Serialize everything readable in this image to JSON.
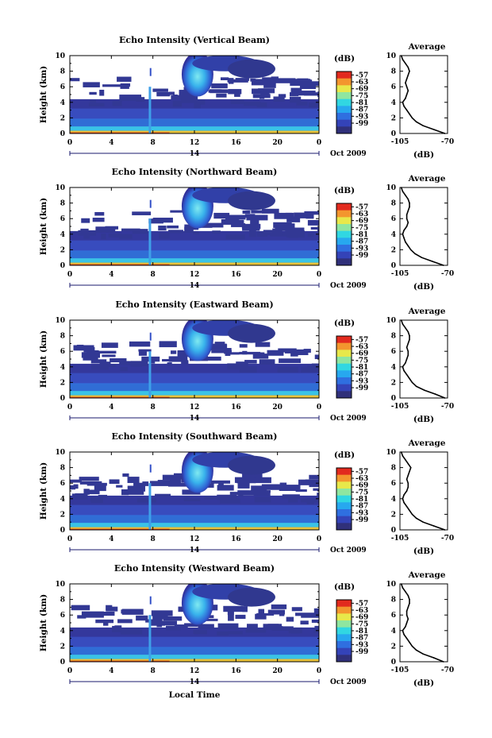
{
  "figure": {
    "xlabel": "Local Time",
    "date_label": "Oct 2009",
    "day_label": "14"
  },
  "chart_data": [
    {
      "type": "heatmap",
      "title": "Echo Intensity (Vertical Beam)",
      "ylabel": "Height (km)",
      "x_ticks": [
        "0",
        "4",
        "8",
        "12",
        "16",
        "20",
        "0"
      ],
      "y_ticks": [
        "0",
        "2",
        "4",
        "6",
        "8",
        "10"
      ],
      "xlim": [
        0,
        24
      ],
      "ylim": [
        0,
        10
      ],
      "colorbar": {
        "label": "(dB)",
        "ticks": [
          "-57",
          "-63",
          "-69",
          "-75",
          "-81",
          "-87",
          "-93",
          "-99"
        ]
      },
      "profile": {
        "title": "Average",
        "xlabel": "(dB)",
        "x_ticks": [
          "-105",
          "-70"
        ],
        "xlim": [
          -105,
          -70
        ],
        "y_ticks": [
          "0",
          "2",
          "4",
          "6",
          "8",
          "10"
        ],
        "heights": [
          0,
          0.5,
          1,
          1.5,
          2,
          2.5,
          3,
          3.5,
          4,
          4.5,
          5,
          5.5,
          6,
          6.5,
          7,
          7.5,
          8,
          8.5,
          9,
          9.5,
          10
        ],
        "values": [
          -72,
          -80,
          -88,
          -93,
          -96,
          -98,
          -100,
          -102,
          -103,
          -101,
          -100,
          -99,
          -100,
          -101,
          -100,
          -99,
          -98,
          -99,
          -101,
          -103,
          -104
        ]
      }
    },
    {
      "type": "heatmap",
      "title": "Echo Intensity (Northward Beam)",
      "ylabel": "Height (km)",
      "x_ticks": [
        "0",
        "4",
        "8",
        "12",
        "16",
        "20",
        "0"
      ],
      "y_ticks": [
        "0",
        "2",
        "4",
        "6",
        "8",
        "10"
      ],
      "xlim": [
        0,
        24
      ],
      "ylim": [
        0,
        10
      ],
      "colorbar": {
        "label": "(dB)",
        "ticks": [
          "-57",
          "-63",
          "-69",
          "-75",
          "-81",
          "-87",
          "-93",
          "-99"
        ]
      },
      "profile": {
        "title": "Average",
        "xlabel": "(dB)",
        "x_ticks": [
          "-105",
          "-70"
        ],
        "xlim": [
          -105,
          -70
        ],
        "y_ticks": [
          "0",
          "2",
          "4",
          "6",
          "8",
          "10"
        ],
        "heights": [
          0,
          0.5,
          1,
          1.5,
          2,
          2.5,
          3,
          3.5,
          4,
          4.5,
          5,
          5.5,
          6,
          6.5,
          7,
          7.5,
          8,
          8.5,
          9,
          9.5,
          10
        ],
        "values": [
          -73,
          -81,
          -89,
          -94,
          -97,
          -99,
          -101,
          -102,
          -103,
          -102,
          -100,
          -99,
          -100,
          -100,
          -99,
          -98,
          -98,
          -99,
          -101,
          -103,
          -104
        ]
      }
    },
    {
      "type": "heatmap",
      "title": "Echo Intensity (Eastward Beam)",
      "ylabel": "Height (km)",
      "x_ticks": [
        "0",
        "4",
        "8",
        "12",
        "16",
        "20",
        "0"
      ],
      "y_ticks": [
        "0",
        "2",
        "4",
        "6",
        "8",
        "10"
      ],
      "xlim": [
        0,
        24
      ],
      "ylim": [
        0,
        10
      ],
      "colorbar": {
        "label": "(dB)",
        "ticks": [
          "-57",
          "-63",
          "-69",
          "-75",
          "-81",
          "-87",
          "-93",
          "-99"
        ]
      },
      "profile": {
        "title": "Average",
        "xlabel": "(dB)",
        "x_ticks": [
          "-105",
          "-70"
        ],
        "xlim": [
          -105,
          -70
        ],
        "y_ticks": [
          "0",
          "2",
          "4",
          "6",
          "8",
          "10"
        ],
        "heights": [
          0,
          0.5,
          1,
          1.5,
          2,
          2.5,
          3,
          3.5,
          4,
          4.5,
          5,
          5.5,
          6,
          6.5,
          7,
          7.5,
          8,
          8.5,
          9,
          9.5,
          10
        ],
        "values": [
          -72,
          -79,
          -87,
          -93,
          -96,
          -98,
          -100,
          -102,
          -103,
          -101,
          -100,
          -99,
          -99,
          -100,
          -99,
          -98,
          -98,
          -99,
          -101,
          -103,
          -104
        ]
      }
    },
    {
      "type": "heatmap",
      "title": "Echo Intensity (Southward Beam)",
      "ylabel": "Height (km)",
      "x_ticks": [
        "0",
        "4",
        "8",
        "12",
        "16",
        "20",
        "0"
      ],
      "y_ticks": [
        "0",
        "2",
        "4",
        "6",
        "8",
        "10"
      ],
      "xlim": [
        0,
        24
      ],
      "ylim": [
        0,
        10
      ],
      "colorbar": {
        "label": "(dB)",
        "ticks": [
          "-57",
          "-63",
          "-69",
          "-75",
          "-81",
          "-87",
          "-93",
          "-99"
        ]
      },
      "profile": {
        "title": "Average",
        "xlabel": "(dB)",
        "x_ticks": [
          "-105",
          "-70"
        ],
        "xlim": [
          -105,
          -70
        ],
        "y_ticks": [
          "0",
          "2",
          "4",
          "6",
          "8",
          "10"
        ],
        "heights": [
          0,
          0.5,
          1,
          1.5,
          2,
          2.5,
          3,
          3.5,
          4,
          4.5,
          5,
          5.5,
          6,
          6.5,
          7,
          7.5,
          8,
          8.5,
          9,
          9.5,
          10
        ],
        "values": [
          -72,
          -80,
          -88,
          -93,
          -96,
          -98,
          -100,
          -102,
          -103,
          -102,
          -100,
          -99,
          -99,
          -100,
          -99,
          -98,
          -97,
          -99,
          -101,
          -103,
          -104
        ]
      }
    },
    {
      "type": "heatmap",
      "title": "Echo Intensity (Westward Beam)",
      "ylabel": "Height (km)",
      "x_ticks": [
        "0",
        "4",
        "8",
        "12",
        "16",
        "20",
        "0"
      ],
      "y_ticks": [
        "0",
        "2",
        "4",
        "6",
        "8",
        "10"
      ],
      "xlim": [
        0,
        24
      ],
      "ylim": [
        0,
        10
      ],
      "colorbar": {
        "label": "(dB)",
        "ticks": [
          "-57",
          "-63",
          "-69",
          "-75",
          "-81",
          "-87",
          "-93",
          "-99"
        ]
      },
      "profile": {
        "title": "Average",
        "xlabel": "(dB)",
        "x_ticks": [
          "-105",
          "-70"
        ],
        "xlim": [
          -105,
          -70
        ],
        "y_ticks": [
          "0",
          "2",
          "4",
          "6",
          "8",
          "10"
        ],
        "heights": [
          0,
          0.5,
          1,
          1.5,
          2,
          2.5,
          3,
          3.5,
          4,
          4.5,
          5,
          5.5,
          6,
          6.5,
          7,
          7.5,
          8,
          8.5,
          9,
          9.5,
          10
        ],
        "values": [
          -73,
          -80,
          -88,
          -93,
          -96,
          -98,
          -100,
          -102,
          -103,
          -101,
          -100,
          -99,
          -100,
          -100,
          -99,
          -98,
          -98,
          -99,
          -101,
          -103,
          -104
        ]
      }
    }
  ]
}
